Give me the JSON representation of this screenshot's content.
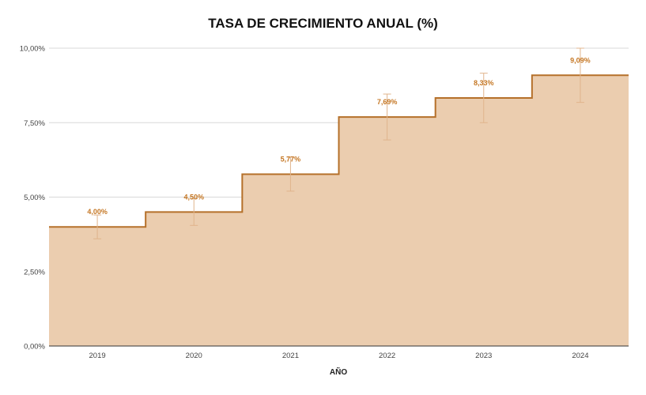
{
  "chart_data": {
    "type": "area",
    "step": true,
    "title": "TASA DE CRECIMIENTO ANUAL (%)",
    "xlabel": "AÑO",
    "ylabel": "",
    "categories": [
      "2019",
      "2020",
      "2021",
      "2022",
      "2023",
      "2024"
    ],
    "series": [
      {
        "values": [
          4.0,
          4.5,
          5.77,
          7.69,
          8.33,
          9.09
        ],
        "data_labels": [
          "4,00%",
          "4,50%",
          "5,77%",
          "7,69%",
          "8,33%",
          "9,09%"
        ],
        "error_low": [
          3.6,
          4.05,
          5.2,
          6.92,
          7.5,
          8.18
        ],
        "error_high": [
          4.4,
          4.95,
          6.34,
          8.46,
          9.16,
          10.0
        ]
      }
    ],
    "ylim": [
      0,
      10
    ],
    "yticks": [
      0,
      2.5,
      5,
      7.5,
      10
    ],
    "ytick_labels": [
      "0,00%",
      "2,50%",
      "5,00%",
      "7,50%",
      "10,00%"
    ],
    "grid": true,
    "legend": "none",
    "colors": {
      "fill": "#ebcdaf",
      "line": "#b5702a",
      "error_bar": "#e0b48c",
      "label": "#c57724",
      "grid": "#d9d9d9"
    }
  }
}
